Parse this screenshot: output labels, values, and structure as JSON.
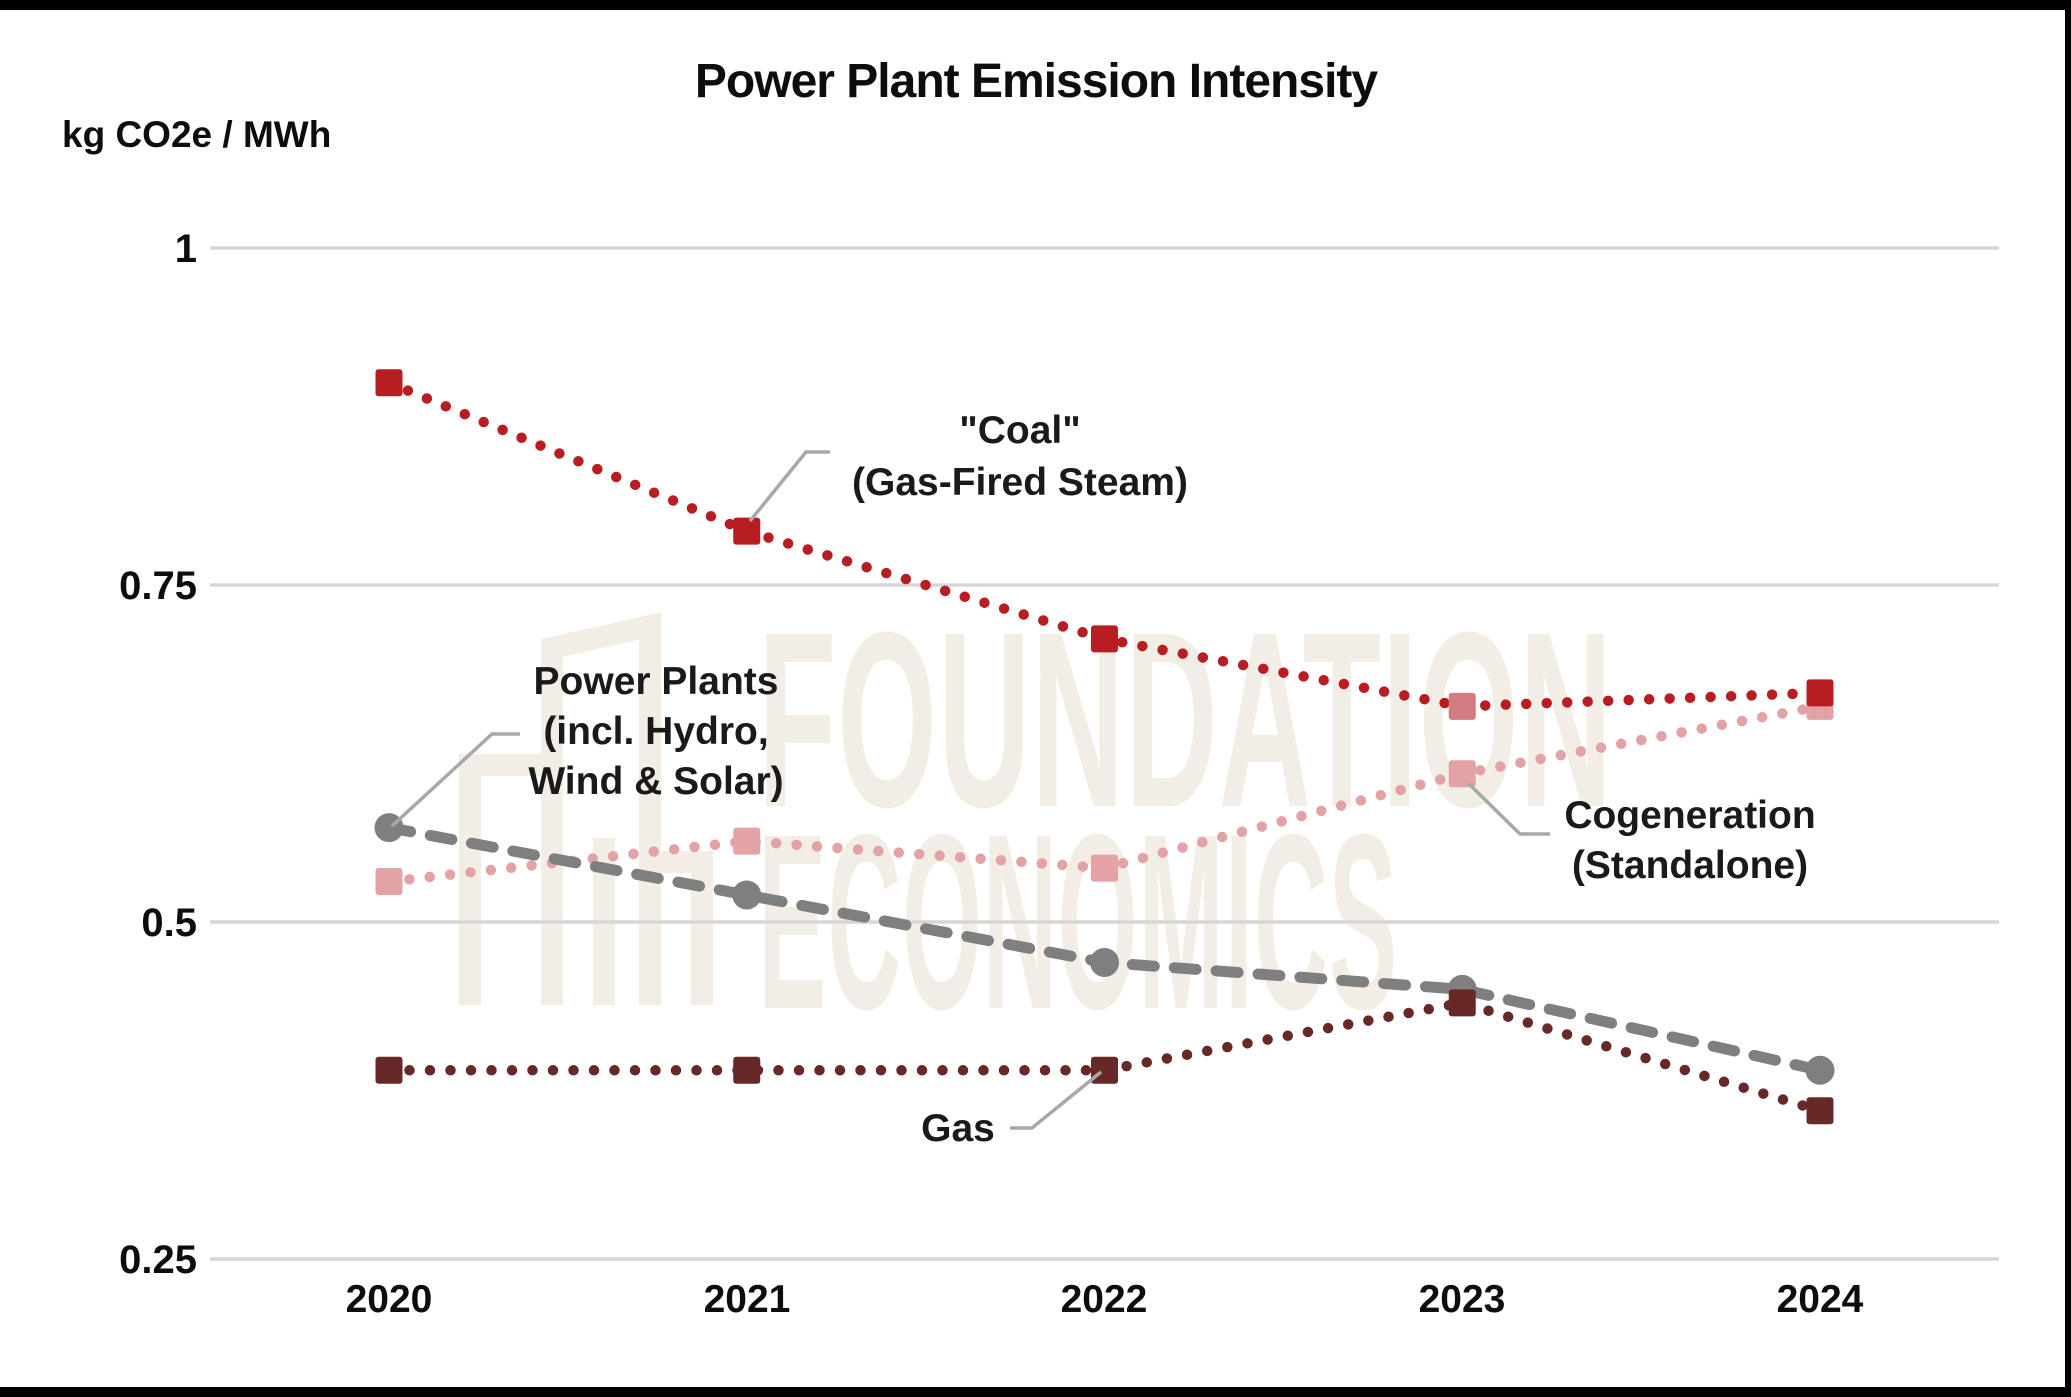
{
  "title": "Power Plant Emission Intensity",
  "y_axis_unit_label": "kg CO2e / MWh",
  "axes": {
    "x_ticks": [
      "2020",
      "2021",
      "2022",
      "2023",
      "2024"
    ],
    "y_ticks": [
      "1",
      "0.75",
      "0.5",
      "0.25"
    ]
  },
  "annotations": {
    "coal_line1": "\"Coal\"",
    "coal_line2": "(Gas-Fired Steam)",
    "power_plants_line1": "Power Plants",
    "power_plants_line2": "(incl. Hydro,",
    "power_plants_line3": "Wind & Solar)",
    "cogeneration_line1": "Cogeneration",
    "cogeneration_line2": "(Standalone)",
    "gas_label": "Gas"
  },
  "watermark": {
    "line1": "FOUNDATION",
    "line2": "ECONOMICS",
    "color": "#F3EEE5"
  },
  "colors": {
    "coal": "#B81D22",
    "coal_2023_marker": "#D07C80",
    "power_plants": "#7F7F7F",
    "cogeneration": "#E2A2A6",
    "gas": "#662928",
    "gridline": "#D6D6D6",
    "callout": "#A8A8A8",
    "frame": "#000000",
    "text": "#0d0d0d"
  },
  "chart_data": {
    "type": "line",
    "title": "Power Plant Emission Intensity",
    "ylabel": "kg CO2e / MWh",
    "x": [
      2020,
      2021,
      2022,
      2023,
      2024
    ],
    "ylim": [
      0.25,
      1
    ],
    "y_gridlines": [
      1,
      0.75,
      0.5,
      0.25
    ],
    "grid": true,
    "legend_position": "inline-annotations",
    "series": [
      {
        "id": "coal",
        "name": "\"Coal\" (Gas-Fired Steam)",
        "values": [
          0.9,
          0.79,
          0.71,
          0.66,
          0.67
        ],
        "color": "#B81D22",
        "marker": "square",
        "line_style": "dotted",
        "marker_overrides": {
          "3": "#D07C80"
        }
      },
      {
        "id": "power-plants",
        "name": "Power Plants (incl. Hydro, Wind & Solar)",
        "values": [
          0.57,
          0.52,
          0.47,
          0.45,
          0.39
        ],
        "color": "#7F7F7F",
        "marker": "circle",
        "line_style": "dashed"
      },
      {
        "id": "cogeneration",
        "name": "Cogeneration (Standalone)",
        "values": [
          0.53,
          0.56,
          0.54,
          0.61,
          0.66
        ],
        "color": "#E2A2A6",
        "marker": "square",
        "line_style": "dotted"
      },
      {
        "id": "gas",
        "name": "Gas",
        "values": [
          0.39,
          0.39,
          0.39,
          0.44,
          0.36
        ],
        "color": "#662928",
        "marker": "square",
        "line_style": "dotted"
      }
    ]
  }
}
